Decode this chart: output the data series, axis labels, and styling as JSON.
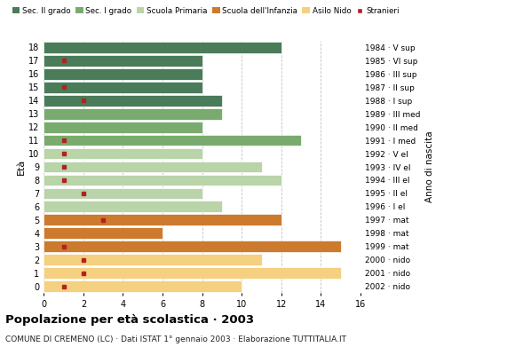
{
  "ages": [
    18,
    17,
    16,
    15,
    14,
    13,
    12,
    11,
    10,
    9,
    8,
    7,
    6,
    5,
    4,
    3,
    2,
    1,
    0
  ],
  "anni_nascita": [
    "1984 · V sup",
    "1985 · VI sup",
    "1986 · III sup",
    "1987 · II sup",
    "1988 · I sup",
    "1989 · III med",
    "1990 · II med",
    "1991 · I med",
    "1992 · V el",
    "1993 · IV el",
    "1994 · III el",
    "1995 · II el",
    "1996 · I el",
    "1997 · mat",
    "1998 · mat",
    "1999 · mat",
    "2000 · nido",
    "2001 · nido",
    "2002 · nido"
  ],
  "bar_values": [
    12,
    8,
    8,
    8,
    9,
    9,
    8,
    13,
    8,
    11,
    12,
    8,
    9,
    12,
    6,
    15,
    11,
    15,
    10
  ],
  "stranieri": [
    0,
    1,
    0,
    1,
    2,
    0,
    0,
    1,
    1,
    1,
    1,
    2,
    0,
    3,
    0,
    1,
    2,
    2,
    1
  ],
  "bar_colors": [
    "#4a7c59",
    "#4a7c59",
    "#4a7c59",
    "#4a7c59",
    "#4a7c59",
    "#7aab6e",
    "#7aab6e",
    "#7aab6e",
    "#b8d4a8",
    "#b8d4a8",
    "#b8d4a8",
    "#b8d4a8",
    "#b8d4a8",
    "#cc7a2e",
    "#cc7a2e",
    "#cc7a2e",
    "#f5d080",
    "#f5d080",
    "#f5d080"
  ],
  "legend_labels": [
    "Sec. II grado",
    "Sec. I grado",
    "Scuola Primaria",
    "Scuola dell'Infanzia",
    "Asilo Nido",
    "Stranieri"
  ],
  "legend_colors": [
    "#4a7c59",
    "#7aab6e",
    "#b8d4a8",
    "#cc7a2e",
    "#f5d080",
    "#b22222"
  ],
  "title": "Popolazione per età scolastica · 2003",
  "subtitle": "COMUNE DI CREMENO (LC) · Dati ISTAT 1° gennaio 2003 · Elaborazione TUTTITALIA.IT",
  "ylabel_left": "Età",
  "ylabel_right": "Anno di nascita",
  "xlim": [
    0,
    16
  ],
  "stranieri_color": "#b22222",
  "bar_height": 0.85,
  "grid_color": "#b0b0b0",
  "bg_color": "#ffffff",
  "bar_edge_color": "#ffffff",
  "bar_edge_width": 0.5
}
